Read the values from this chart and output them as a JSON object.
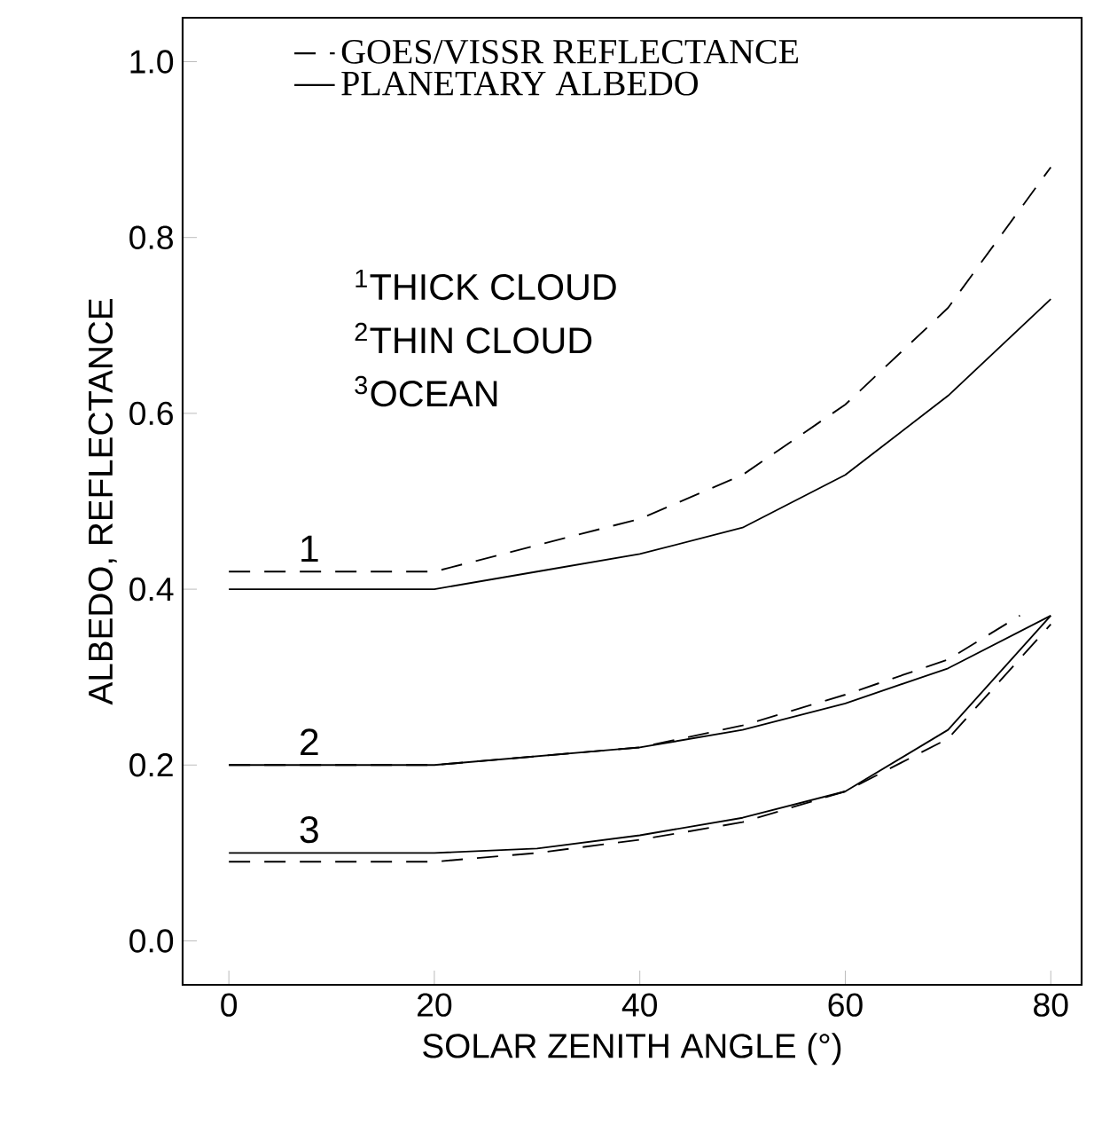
{
  "chart_data": {
    "type": "line",
    "xlabel": "SOLAR ZENITH ANGLE (°)",
    "ylabel": "ALBEDO, REFLECTANCE",
    "xlim": [
      -4.5,
      83
    ],
    "ylim": [
      -0.05,
      1.05
    ],
    "xticks": [
      0,
      20,
      40,
      60,
      80
    ],
    "yticks": [
      {
        "value": 0,
        "label": "0.0"
      },
      {
        "value": 0.2,
        "label": "0.2"
      },
      {
        "value": 0.4,
        "label": "0.4"
      },
      {
        "value": 0.6,
        "label": "0.6"
      },
      {
        "value": 0.8,
        "label": "0.8"
      },
      {
        "value": 1,
        "label": "1.0"
      }
    ],
    "legend": "top",
    "grid": false,
    "marker": "none",
    "series": [
      {
        "name": "GOES/VISSR REFLECTANCE",
        "color": "#000000",
        "line_style": "dashed",
        "x": [
          0,
          10,
          20,
          30,
          40,
          50,
          60,
          70,
          80
        ],
        "values": [
          0.42,
          0.42,
          0.42,
          0.45,
          0.48,
          0.53,
          0.61,
          0.72,
          0.88
        ]
      },
      {
        "name": "PLANETARY ALBEDO",
        "color": "#000000",
        "line_style": "solid",
        "x": [
          0,
          20,
          30,
          40,
          50,
          60,
          70,
          80
        ],
        "values": [
          0.4,
          0.4,
          0.42,
          0.44,
          0.47,
          0.53,
          0.62,
          0.73
        ]
      },
      {
        "color": "#000000",
        "line_style": "dashed",
        "x": [
          0,
          20,
          40,
          50,
          60,
          70,
          77
        ],
        "values": [
          0.2,
          0.2,
          0.22,
          0.245,
          0.28,
          0.32,
          0.37
        ]
      },
      {
        "color": "#000000",
        "line_style": "solid",
        "x": [
          0,
          20,
          40,
          50,
          60,
          70,
          80
        ],
        "values": [
          0.2,
          0.2,
          0.22,
          0.24,
          0.27,
          0.31,
          0.37
        ]
      },
      {
        "color": "#000000",
        "line_style": "dashed",
        "x": [
          0,
          20,
          30,
          40,
          50,
          60,
          70,
          80
        ],
        "values": [
          0.09,
          0.09,
          0.1,
          0.115,
          0.135,
          0.17,
          0.23,
          0.36
        ]
      },
      {
        "color": "#000000",
        "line_style": "solid",
        "x": [
          0,
          20,
          30,
          40,
          50,
          60,
          70,
          80
        ],
        "values": [
          0.1,
          0.1,
          0.105,
          0.12,
          0.14,
          0.17,
          0.24,
          0.37
        ]
      }
    ],
    "annotations": [
      "1",
      "2",
      "3",
      "$^{1}$THICK CLOUD",
      "$^{2}$THIN CLOUD",
      "$^{3}$OCEAN"
    ]
  }
}
